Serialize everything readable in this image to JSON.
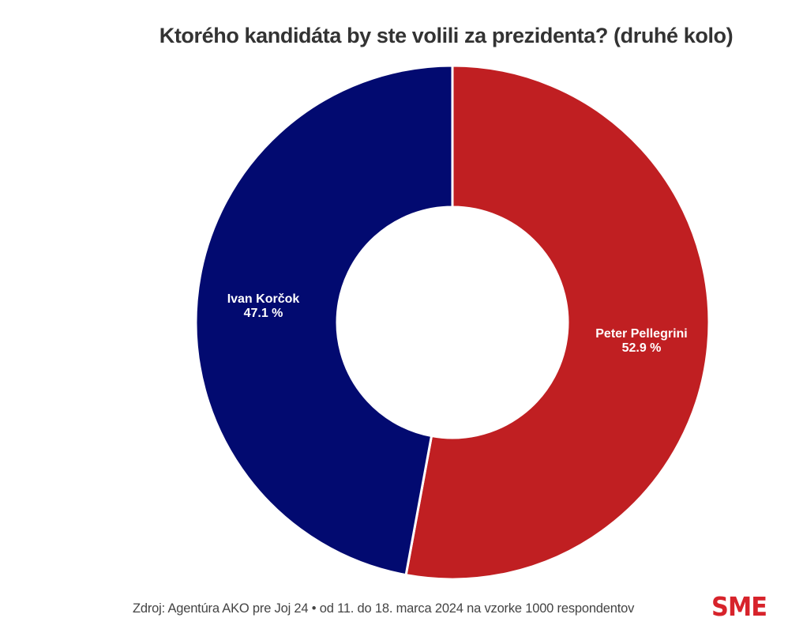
{
  "chart_data": {
    "type": "pie",
    "variant": "donut",
    "title": "Ktorého kandidáta by ste volili za prezidenta? (druhé kolo)",
    "unit": "%",
    "slices": [
      {
        "name": "Peter Pellegrini",
        "value": 52.9,
        "label_value": "52.9 %",
        "color": "#c01f22"
      },
      {
        "name": "Ivan Korčok",
        "value": 47.1,
        "label_value": "47.1 %",
        "color": "#020a70"
      }
    ],
    "legend": "none",
    "start_angle_deg": 0,
    "direction": "clockwise"
  },
  "footer": {
    "source": "Zdroj: Agentúra AKO pre Joj 24 • od 11. do 18. marca 2024 na vzorke 1000 respondentov",
    "logo_text": "SME",
    "logo_color": "#d7232b"
  }
}
